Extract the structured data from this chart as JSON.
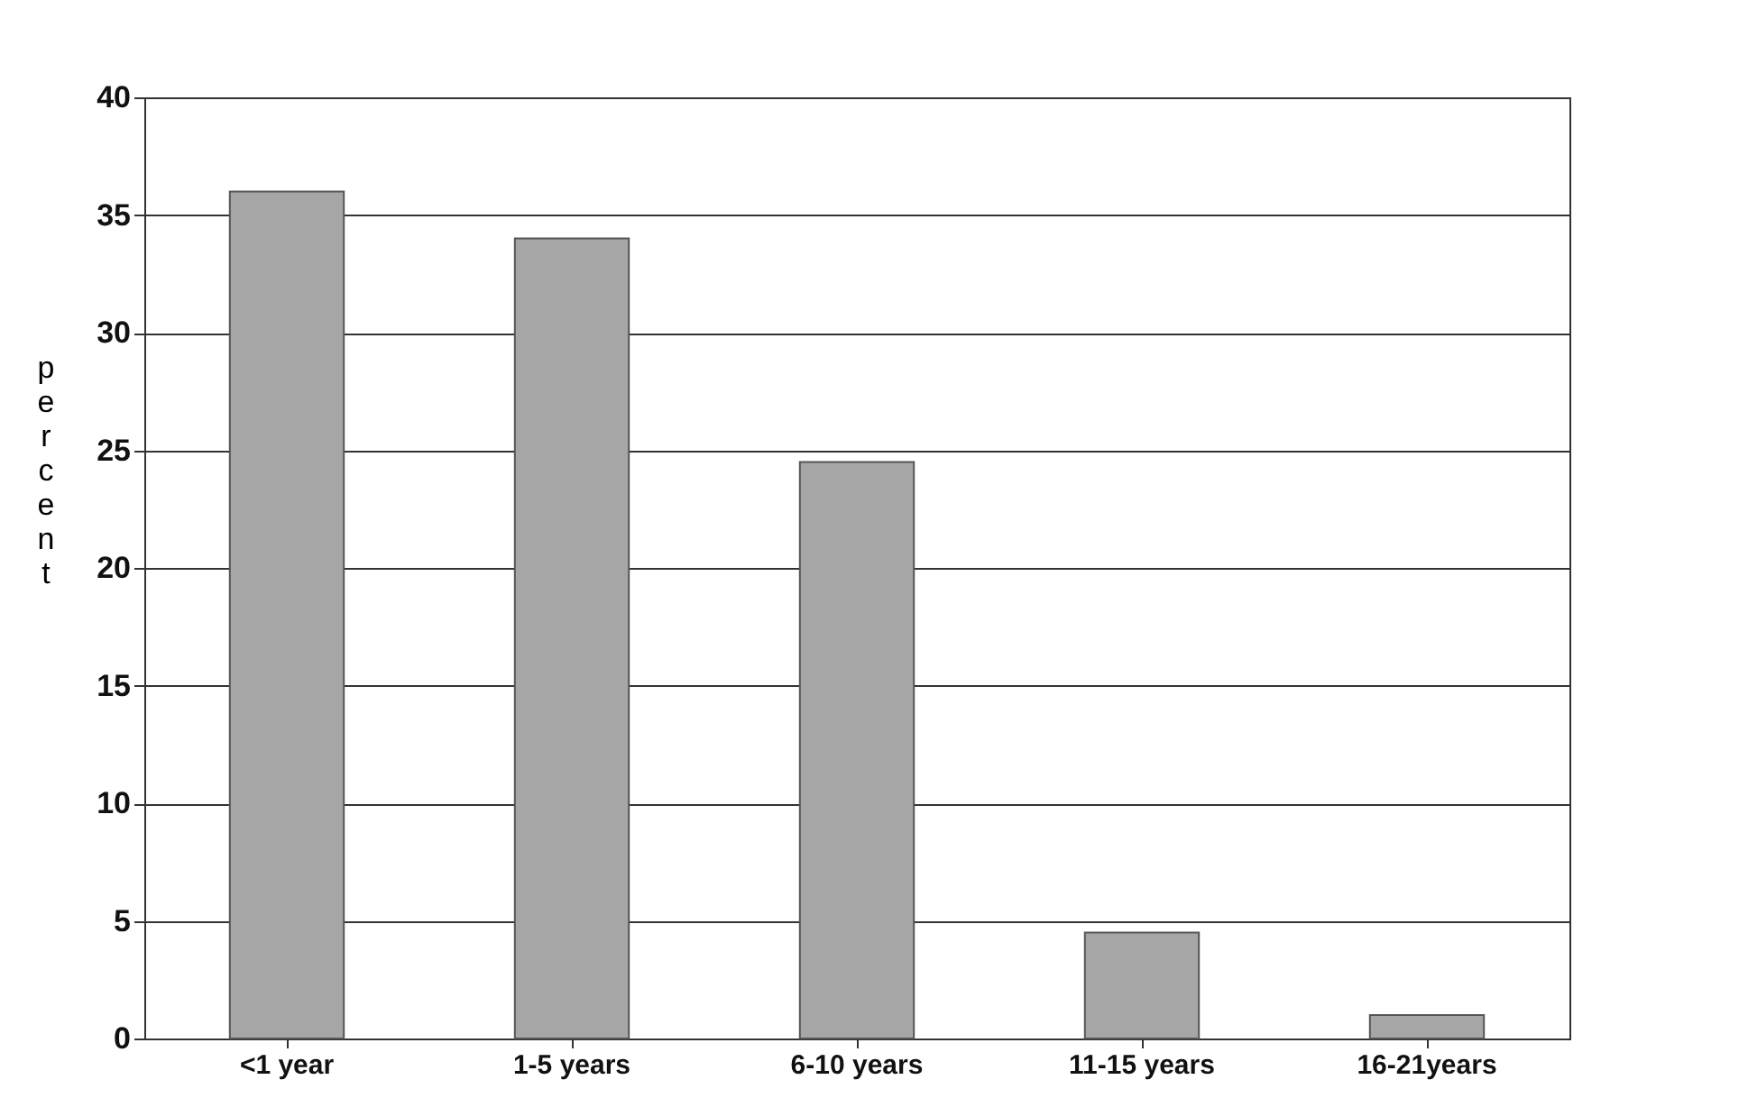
{
  "chart_data": {
    "type": "bar",
    "ylabel": "percent",
    "categories": [
      "<1 year",
      "1-5 years",
      "6-10 years",
      "11-15 years",
      "16-21years"
    ],
    "values": [
      36,
      34,
      24.5,
      4.5,
      1
    ],
    "color": "#a6a6a6",
    "ylim": [
      0,
      40
    ],
    "yticks": [
      0,
      5,
      10,
      15,
      20,
      25,
      30,
      35,
      40
    ],
    "grid": "y"
  }
}
